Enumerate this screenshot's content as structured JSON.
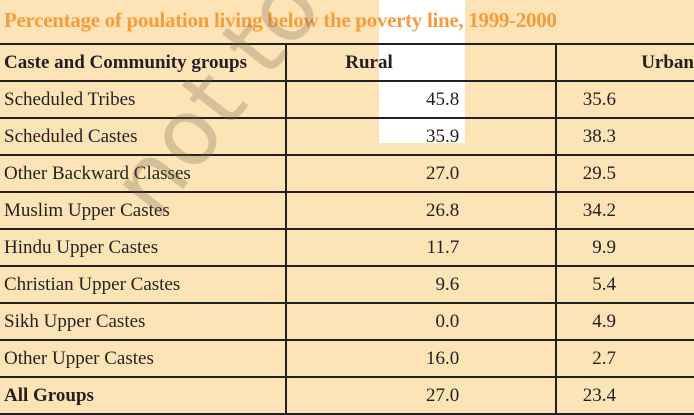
{
  "title": "Percentage of poulation living below the poverty line, 1999-2000",
  "watermark": "not to be",
  "colors": {
    "background": "#fde4b6",
    "title": "#f59d3d"
  },
  "table": {
    "headers": [
      "Caste and Community groups",
      "Rural",
      "Urban"
    ],
    "rows": [
      {
        "group": "Scheduled Tribes",
        "rural": "45.8",
        "urban": "35.6"
      },
      {
        "group": "Scheduled Castes",
        "rural": "35.9",
        "urban": "38.3"
      },
      {
        "group": "Other Backward Classes",
        "rural": "27.0",
        "urban": "29.5"
      },
      {
        "group": "Muslim Upper Castes",
        "rural": "26.8",
        "urban": "34.2"
      },
      {
        "group": "Hindu Upper Castes",
        "rural": "11.7",
        "urban": "9.9"
      },
      {
        "group": "Christian Upper Castes",
        "rural": "9.6",
        "urban": "5.4"
      },
      {
        "group": "Sikh Upper Castes",
        "rural": "0.0",
        "urban": "4.9"
      },
      {
        "group": "Other Upper Castes",
        "rural": "16.0",
        "urban": "2.7"
      }
    ],
    "total": {
      "group": "All Groups",
      "rural": "27.0",
      "urban": "23.4"
    }
  }
}
